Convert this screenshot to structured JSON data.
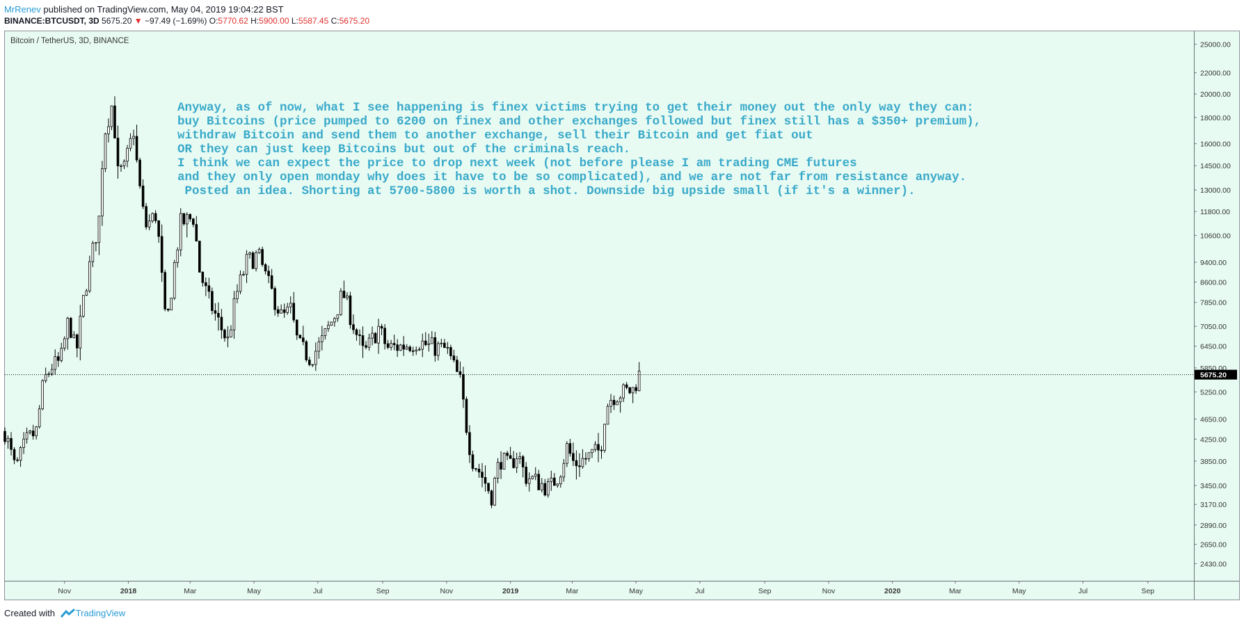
{
  "header": {
    "author": "MrRenev",
    "published_text": "published on TradingView.com, May 04, 2019 19:04:22 BST",
    "symbol": "BINANCE:BTCUSDT, 3D",
    "last": "5675.20",
    "change": "−97.49 (−1.69%)",
    "open_label": "O:",
    "open": "5770.62",
    "high_label": "H:",
    "high": "5900.00",
    "low_label": "L:",
    "low": "5587.45",
    "close_label": "C:",
    "close": "5675.20",
    "down_color": "#e0302e"
  },
  "footer": {
    "created_with": "Created with",
    "brand": "TradingView"
  },
  "chart_data": {
    "type": "candlestick",
    "title": "Bitcoin / TetherUS, 3D, BINANCE",
    "y_scale": "log",
    "ylim": [
      2250,
      26500
    ],
    "y_ticks": [
      2430,
      2650,
      2890,
      3170,
      3450,
      3850,
      4250,
      4650,
      5250,
      5850,
      6450,
      7050,
      7850,
      8600,
      9400,
      10600,
      11800,
      13000,
      14500,
      16000,
      18000,
      20000,
      22000,
      25000
    ],
    "y_tick_labels": [
      "2430.00",
      "2650.00",
      "2890.00",
      "3170.00",
      "3450.00",
      "3850.00",
      "4250.00",
      "4650.00",
      "5250.00",
      "5850.00",
      "6450.00",
      "7050.00",
      "7850.00",
      "8600.00",
      "9400.00",
      "10600.00",
      "11800.00",
      "13000.00",
      "14500.00",
      "16000.00",
      "18000.00",
      "20000.00",
      "22000.00",
      "25000.00"
    ],
    "x_ticks": [
      "Nov",
      "2018",
      "Mar",
      "May",
      "Jul",
      "Sep",
      "Nov",
      "2019",
      "Mar",
      "May",
      "Jul",
      "Sep",
      "Nov",
      "2020",
      "Mar",
      "May",
      "Jul",
      "Sep"
    ],
    "x_range": [
      "2017-09-05",
      "2020-10-15"
    ],
    "last_price": 5675.2,
    "last_price_label": "5675.20",
    "background": "#e8fbf3",
    "up_color": "#ffffff",
    "down_color": "#000000",
    "annotation": [
      "Anyway, as of now, what I see happening is finex victims trying to get their money out the only way they can:",
      "buy Bitcoins (price pumped to 6200 on finex and other exchanges followed but finex still has a $350+ premium),",
      "withdraw Bitcoin and send them to another exchange, sell their Bitcoin and get fiat out",
      "OR they can just keep Bitcoins but out of the criminals reach.",
      "I think we can expect the price to drop next week (not before please I am trading CME futures",
      "and they only open monday why does it have to be so complicated), and we are not far from resistance anyway.",
      " Posted an idea. Shorting at 5700-5800 is worth a shot. Downside big upside small (if it's a winner)."
    ],
    "annotation_color": "#39a9c9",
    "close_path": [
      [
        "2017-09-05",
        4400
      ],
      [
        "2017-09-15",
        3700
      ],
      [
        "2017-09-25",
        4200
      ],
      [
        "2017-10-05",
        4400
      ],
      [
        "2017-10-12",
        5500
      ],
      [
        "2017-10-20",
        5900
      ],
      [
        "2017-10-28",
        6000
      ],
      [
        "2017-11-05",
        7300
      ],
      [
        "2017-11-12",
        6200
      ],
      [
        "2017-11-20",
        8200
      ],
      [
        "2017-11-28",
        9900
      ],
      [
        "2017-12-05",
        11700
      ],
      [
        "2017-12-08",
        16500
      ],
      [
        "2017-12-17",
        19300
      ],
      [
        "2017-12-22",
        14000
      ],
      [
        "2017-12-28",
        14300
      ],
      [
        "2018-01-06",
        17000
      ],
      [
        "2018-01-10",
        14000
      ],
      [
        "2018-01-17",
        11000
      ],
      [
        "2018-01-28",
        11700
      ],
      [
        "2018-02-06",
        6900
      ],
      [
        "2018-02-14",
        9300
      ],
      [
        "2018-02-20",
        11200
      ],
      [
        "2018-03-05",
        11500
      ],
      [
        "2018-03-09",
        9200
      ],
      [
        "2018-03-18",
        8000
      ],
      [
        "2018-04-01",
        6900
      ],
      [
        "2018-04-06",
        6600
      ],
      [
        "2018-04-14",
        8100
      ],
      [
        "2018-04-24",
        9400
      ],
      [
        "2018-05-05",
        9700
      ],
      [
        "2018-05-14",
        8600
      ],
      [
        "2018-05-28",
        7300
      ],
      [
        "2018-06-05",
        7600
      ],
      [
        "2018-06-12",
        6500
      ],
      [
        "2018-06-24",
        6100
      ],
      [
        "2018-07-05",
        6600
      ],
      [
        "2018-07-17",
        7400
      ],
      [
        "2018-07-25",
        8200
      ],
      [
        "2018-08-05",
        7000
      ],
      [
        "2018-08-14",
        6200
      ],
      [
        "2018-08-28",
        7000
      ],
      [
        "2018-09-05",
        6400
      ],
      [
        "2018-09-20",
        6450
      ],
      [
        "2018-10-05",
        6600
      ],
      [
        "2018-10-15",
        6450
      ],
      [
        "2018-11-01",
        6350
      ],
      [
        "2018-11-14",
        5500
      ],
      [
        "2018-11-20",
        4500
      ],
      [
        "2018-11-25",
        3900
      ],
      [
        "2018-12-05",
        3600
      ],
      [
        "2018-12-14",
        3300
      ],
      [
        "2018-12-22",
        3900
      ],
      [
        "2018-12-31",
        3750
      ],
      [
        "2019-01-08",
        4000
      ],
      [
        "2019-01-15",
        3600
      ],
      [
        "2019-01-28",
        3500
      ],
      [
        "2019-02-07",
        3400
      ],
      [
        "2019-02-17",
        3650
      ],
      [
        "2019-02-24",
        4100
      ],
      [
        "2019-03-03",
        3800
      ],
      [
        "2019-03-14",
        3900
      ],
      [
        "2019-03-28",
        4050
      ],
      [
        "2019-04-02",
        4900
      ],
      [
        "2019-04-08",
        5150
      ],
      [
        "2019-04-20",
        5250
      ],
      [
        "2019-04-28",
        5300
      ],
      [
        "2019-05-04",
        5675
      ]
    ]
  }
}
